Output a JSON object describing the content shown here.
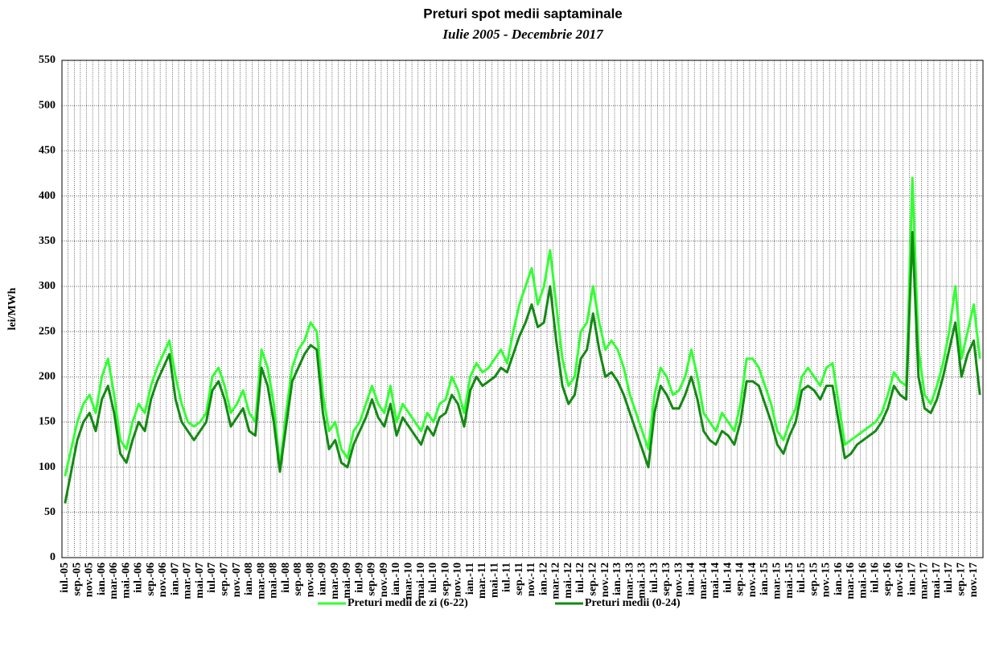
{
  "chart_data": {
    "type": "line",
    "title": "Preturi spot medii saptaminale",
    "subtitle": "Iulie 2005 - Decembrie 2017",
    "y_label": "lei/MWh",
    "categories": [
      "iul.-05",
      null,
      "sep.-05",
      null,
      "nov.-05",
      null,
      "ian.-06",
      null,
      "mar.-06",
      null,
      "mai.-06",
      null,
      "iul.-06",
      null,
      "sep.-06",
      null,
      "nov.-06",
      null,
      "ian.-07",
      null,
      "mar.-07",
      null,
      "mai.-07",
      null,
      "iul.-07",
      null,
      "sep.-07",
      null,
      "nov.-07",
      null,
      "ian.-08",
      null,
      "mar.-08",
      null,
      "mai.-08",
      null,
      "iul.-08",
      null,
      "sep.-08",
      null,
      "nov.-08",
      null,
      "ian.-09",
      null,
      "mar.-09",
      null,
      "mai.-09",
      null,
      "iul.-09",
      null,
      "sep.-09",
      null,
      "nov.-09",
      null,
      "ian.-10",
      null,
      "mar.-10",
      null,
      "mai.-10",
      null,
      "iul.-10",
      null,
      "sep.-10",
      null,
      "nov.-10",
      null,
      "ian.-11",
      null,
      "mar.-11",
      null,
      "mai.-11",
      null,
      "iul.-11",
      null,
      "sep.-11",
      null,
      "nov.-11",
      null,
      "ian.-12",
      null,
      "mar.-12",
      null,
      "mai.-12",
      null,
      "iul.-12",
      null,
      "sep.-12",
      null,
      "nov.-12",
      null,
      "ian.-13",
      null,
      "mar.-13",
      null,
      "mai.-13",
      null,
      "iul.-13",
      null,
      "sep.-13",
      null,
      "nov.-13",
      null,
      "ian.-14",
      null,
      "mar.-14",
      null,
      "mai.-14",
      null,
      "iul.-14",
      null,
      "sep.-14",
      null,
      "nov.-14",
      null,
      "ian.-15",
      null,
      "mar.-15",
      null,
      "mai.-15",
      null,
      "iul.-15",
      null,
      "sep.-15",
      null,
      "nov.-15",
      null,
      "ian.-16",
      null,
      "mar.-16",
      null,
      "mai.-16",
      null,
      "iul.-16",
      null,
      "sep.-16",
      null,
      "nov.-16",
      null,
      "ian.-17",
      null,
      "mar.-17",
      null,
      "mai.-17",
      null,
      "iul.-17",
      null,
      "sep.-17",
      null,
      "nov.-17",
      null
    ],
    "series": [
      {
        "name": "Preturi medii de zi (6-22)",
        "color": "#33ff33",
        "values": [
          90,
          120,
          150,
          170,
          180,
          160,
          200,
          220,
          180,
          130,
          120,
          150,
          170,
          160,
          190,
          210,
          225,
          240,
          200,
          170,
          150,
          145,
          150,
          160,
          200,
          210,
          190,
          160,
          170,
          185,
          160,
          150,
          230,
          210,
          170,
          100,
          160,
          210,
          230,
          240,
          260,
          250,
          180,
          140,
          150,
          120,
          110,
          140,
          150,
          170,
          190,
          170,
          160,
          190,
          150,
          170,
          160,
          150,
          140,
          160,
          150,
          170,
          175,
          200,
          185,
          160,
          200,
          215,
          205,
          210,
          220,
          230,
          215,
          250,
          280,
          300,
          320,
          280,
          300,
          340,
          280,
          220,
          190,
          200,
          250,
          260,
          300,
          260,
          230,
          240,
          230,
          210,
          180,
          160,
          140,
          120,
          180,
          210,
          200,
          180,
          185,
          200,
          230,
          200,
          160,
          150,
          140,
          160,
          150,
          140,
          170,
          220,
          220,
          210,
          190,
          170,
          140,
          130,
          150,
          165,
          200,
          210,
          200,
          190,
          210,
          215,
          170,
          125,
          130,
          135,
          140,
          145,
          150,
          160,
          180,
          205,
          195,
          190,
          420,
          230,
          180,
          170,
          190,
          215,
          250,
          300,
          220,
          250,
          280,
          220
        ]
      },
      {
        "name": "Preturi medii (0-24)",
        "color": "#138a13",
        "values": [
          60,
          95,
          130,
          150,
          160,
          140,
          175,
          190,
          160,
          115,
          105,
          130,
          150,
          140,
          175,
          195,
          210,
          225,
          175,
          150,
          140,
          130,
          140,
          150,
          185,
          195,
          175,
          145,
          155,
          165,
          140,
          135,
          210,
          190,
          150,
          95,
          145,
          195,
          210,
          225,
          235,
          230,
          160,
          120,
          130,
          105,
          100,
          125,
          140,
          155,
          175,
          155,
          145,
          170,
          135,
          155,
          145,
          135,
          125,
          145,
          135,
          155,
          160,
          180,
          170,
          145,
          185,
          200,
          190,
          195,
          200,
          210,
          205,
          225,
          245,
          260,
          280,
          255,
          260,
          300,
          240,
          190,
          170,
          180,
          220,
          230,
          270,
          230,
          200,
          205,
          195,
          180,
          160,
          140,
          120,
          100,
          160,
          190,
          180,
          165,
          165,
          180,
          200,
          175,
          140,
          130,
          125,
          140,
          135,
          125,
          150,
          195,
          195,
          190,
          170,
          150,
          125,
          115,
          135,
          150,
          185,
          190,
          185,
          175,
          190,
          190,
          150,
          110,
          115,
          125,
          130,
          135,
          140,
          150,
          165,
          190,
          180,
          175,
          360,
          200,
          165,
          160,
          175,
          200,
          230,
          260,
          200,
          225,
          240,
          180
        ]
      }
    ],
    "ylim": [
      0,
      550
    ],
    "yticks": [
      0,
      50,
      100,
      150,
      200,
      250,
      300,
      350,
      400,
      450,
      500,
      550
    ],
    "grid": true,
    "legend": "bottom"
  }
}
